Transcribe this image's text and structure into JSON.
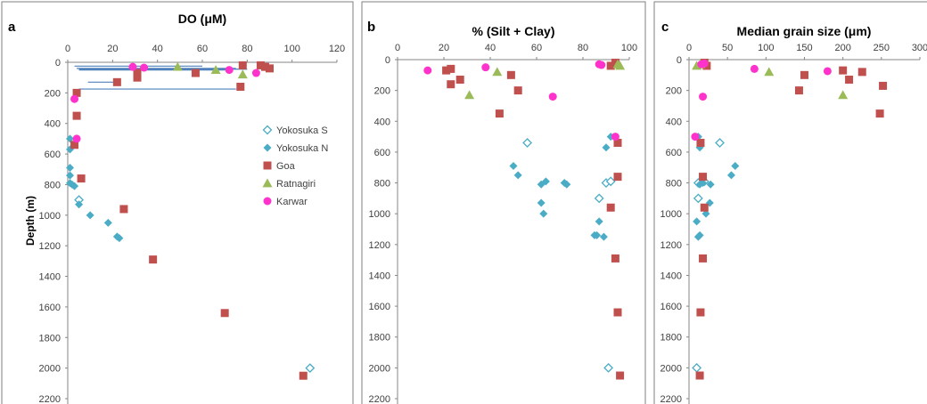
{
  "colors": {
    "yokosuka_s": "#4bacc6",
    "yokosuka_n": "#4bacc6",
    "goa": "#c0504d",
    "ratnagiri": "#9bbb59",
    "karwar": "#ff33cc",
    "whisker": "#4f81bd"
  },
  "legend": {
    "placement": "right-middle of panel a",
    "entries": [
      {
        "key": "yokosuka_s",
        "label": "Yokosuka S",
        "marker": "open-diamond"
      },
      {
        "key": "yokosuka_n",
        "label": "Yokosuka N",
        "marker": "filled-diamond"
      },
      {
        "key": "goa",
        "label": "Goa",
        "marker": "square"
      },
      {
        "key": "ratnagiri",
        "label": "Ratnagiri",
        "marker": "triangle"
      },
      {
        "key": "karwar",
        "label": "Karwar",
        "marker": "circle"
      }
    ]
  },
  "chart_data": [
    {
      "type": "scatter",
      "letter": "a",
      "title": "DO (μM)",
      "ylabel": "Depth (m)",
      "xlim": [
        0,
        120
      ],
      "xticks": [
        "0",
        "20",
        "40",
        "60",
        "80",
        "100",
        "120"
      ],
      "ylim": [
        0,
        2200
      ],
      "yticks": [
        "0",
        "200",
        "400",
        "600",
        "800",
        "1000",
        "1200",
        "1400",
        "1600",
        "1800",
        "2000",
        "2200"
      ],
      "y_axis_inverted": true,
      "grid": false,
      "series": [
        {
          "key": "yokosuka_s",
          "name": "Yokosuka S",
          "points": [
            [
              5,
              900
            ],
            [
              108,
              2000
            ]
          ]
        },
        {
          "key": "yokosuka_n",
          "name": "Yokosuka N",
          "points": [
            [
              1,
              500
            ],
            [
              1,
              570
            ],
            [
              1,
              690
            ],
            [
              1,
              740
            ],
            [
              1,
              790
            ],
            [
              2,
              800
            ],
            [
              3,
              810
            ],
            [
              5,
              930
            ],
            [
              10,
              1000
            ],
            [
              18,
              1050
            ],
            [
              22,
              1140
            ],
            [
              23,
              1150
            ]
          ]
        },
        {
          "key": "goa",
          "name": "Goa",
          "points": [
            [
              78,
              20
            ],
            [
              86,
              20
            ],
            [
              88,
              30
            ],
            [
              90,
              40
            ],
            [
              31,
              70
            ],
            [
              31,
              100
            ],
            [
              57,
              70
            ],
            [
              22,
              130
            ],
            [
              77,
              160
            ],
            [
              4,
              200
            ],
            [
              4,
              350
            ],
            [
              3,
              540
            ],
            [
              6,
              760
            ],
            [
              25,
              960
            ],
            [
              38,
              1290
            ],
            [
              70,
              1640
            ],
            [
              105,
              2050
            ]
          ]
        },
        {
          "key": "ratnagiri",
          "name": "Ratnagiri",
          "points": [
            [
              49,
              30
            ],
            [
              66,
              50
            ],
            [
              78,
              80
            ]
          ]
        },
        {
          "key": "karwar",
          "name": "Karwar",
          "points": [
            [
              29,
              30
            ],
            [
              34,
              35
            ],
            [
              72,
              50
            ],
            [
              84,
              70
            ],
            [
              3,
              240
            ],
            [
              4,
              500
            ]
          ]
        }
      ],
      "whiskers": [
        [
          3,
          60,
          25
        ],
        [
          4,
          75,
          40
        ],
        [
          5,
          80,
          45
        ],
        [
          5,
          72,
          50
        ],
        [
          9,
          22,
          130
        ],
        [
          5,
          75,
          175
        ]
      ]
    },
    {
      "type": "scatter",
      "letter": "b",
      "title": "% (Silt + Clay)",
      "xlim": [
        0,
        100
      ],
      "xticks": [
        "0",
        "20",
        "40",
        "60",
        "80",
        "100"
      ],
      "ylim": [
        0,
        2200
      ],
      "yticks": [
        "0",
        "200",
        "400",
        "600",
        "800",
        "1000",
        "1200",
        "1400",
        "1600",
        "1800",
        "2000",
        "2200"
      ],
      "y_axis_inverted": true,
      "grid": false,
      "series": [
        {
          "key": "yokosuka_s",
          "name": "Yokosuka S",
          "points": [
            [
              56,
              540
            ],
            [
              90,
              800
            ],
            [
              92,
              790
            ],
            [
              87,
              900
            ],
            [
              91,
              2000
            ]
          ]
        },
        {
          "key": "yokosuka_n",
          "name": "Yokosuka N",
          "points": [
            [
              92,
              500
            ],
            [
              90,
              570
            ],
            [
              50,
              690
            ],
            [
              52,
              750
            ],
            [
              62,
              810
            ],
            [
              64,
              790
            ],
            [
              72,
              800
            ],
            [
              73,
              810
            ],
            [
              62,
              930
            ],
            [
              63,
              1000
            ],
            [
              87,
              1050
            ],
            [
              85,
              1140
            ],
            [
              86,
              1140
            ],
            [
              89,
              1150
            ]
          ]
        },
        {
          "key": "goa",
          "name": "Goa",
          "points": [
            [
              94,
              20
            ],
            [
              92,
              40
            ],
            [
              21,
              70
            ],
            [
              23,
              60
            ],
            [
              49,
              100
            ],
            [
              27,
              130
            ],
            [
              23,
              160
            ],
            [
              52,
              200
            ],
            [
              44,
              350
            ],
            [
              95,
              540
            ],
            [
              95,
              760
            ],
            [
              92,
              960
            ],
            [
              94,
              1290
            ],
            [
              95,
              1640
            ],
            [
              96,
              2050
            ]
          ]
        },
        {
          "key": "ratnagiri",
          "name": "Ratnagiri",
          "points": [
            [
              95,
              30
            ],
            [
              96,
              40
            ],
            [
              43,
              80
            ],
            [
              31,
              230
            ]
          ]
        },
        {
          "key": "karwar",
          "name": "Karwar",
          "points": [
            [
              13,
              70
            ],
            [
              38,
              50
            ],
            [
              87,
              30
            ],
            [
              88,
              35
            ],
            [
              67,
              240
            ],
            [
              94,
              500
            ]
          ]
        }
      ]
    },
    {
      "type": "scatter",
      "letter": "c",
      "title": "Median grain size (μm)",
      "xlim": [
        0,
        300
      ],
      "xticks": [
        "0",
        "50",
        "100",
        "150",
        "200",
        "250",
        "300"
      ],
      "ylim": [
        0,
        2200
      ],
      "yticks": [
        "0",
        "200",
        "400",
        "600",
        "800",
        "1000",
        "1200",
        "1400",
        "1600",
        "1800",
        "2000",
        "2200"
      ],
      "y_axis_inverted": true,
      "grid": false,
      "series": [
        {
          "key": "yokosuka_s",
          "name": "Yokosuka S",
          "points": [
            [
              40,
              540
            ],
            [
              12,
              800
            ],
            [
              20,
              790
            ],
            [
              12,
              900
            ],
            [
              10,
              2000
            ]
          ]
        },
        {
          "key": "yokosuka_n",
          "name": "Yokosuka N",
          "points": [
            [
              12,
              500
            ],
            [
              14,
              570
            ],
            [
              60,
              690
            ],
            [
              55,
              750
            ],
            [
              14,
              810
            ],
            [
              18,
              800
            ],
            [
              28,
              810
            ],
            [
              27,
              930
            ],
            [
              22,
              1000
            ],
            [
              10,
              1050
            ],
            [
              12,
              1150
            ],
            [
              14,
              1140
            ]
          ]
        },
        {
          "key": "goa",
          "name": "Goa",
          "points": [
            [
              20,
              20
            ],
            [
              23,
              40
            ],
            [
              200,
              70
            ],
            [
              225,
              80
            ],
            [
              150,
              100
            ],
            [
              208,
              130
            ],
            [
              252,
              170
            ],
            [
              143,
              200
            ],
            [
              248,
              350
            ],
            [
              15,
              540
            ],
            [
              18,
              760
            ],
            [
              20,
              960
            ],
            [
              18,
              1290
            ],
            [
              15,
              1640
            ],
            [
              14,
              2050
            ]
          ]
        },
        {
          "key": "ratnagiri",
          "name": "Ratnagiri",
          "points": [
            [
              10,
              40
            ],
            [
              15,
              30
            ],
            [
              104,
              80
            ],
            [
              200,
              230
            ]
          ]
        },
        {
          "key": "karwar",
          "name": "Karwar",
          "points": [
            [
              16,
              30
            ],
            [
              20,
              25
            ],
            [
              85,
              60
            ],
            [
              180,
              75
            ],
            [
              18,
              240
            ],
            [
              8,
              500
            ]
          ]
        }
      ]
    }
  ]
}
